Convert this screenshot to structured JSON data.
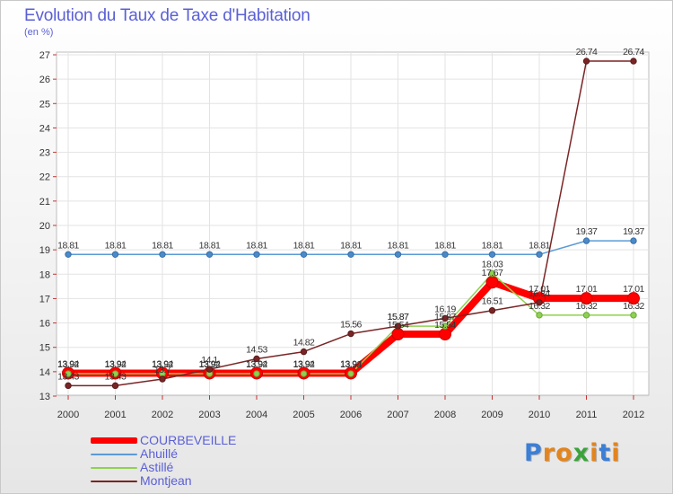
{
  "header": {
    "title": "Evolution du Taux de Taxe d'Habitation",
    "subtitle": "(en %)"
  },
  "logo": {
    "text": "Proxiti",
    "letter_colors": [
      "#3b7fd6",
      "#e2851f",
      "#e2851f",
      "#3aa33a",
      "#e2851f",
      "#3b7fd6",
      "#e2851f"
    ]
  },
  "chart_data": {
    "type": "line",
    "title": "Evolution du Taux de Taxe d'Habitation",
    "ylabel": "(en %)",
    "xlabel": "",
    "x": [
      "2000",
      "2001",
      "2002",
      "2003",
      "2004",
      "2005",
      "2006",
      "2007",
      "2008",
      "2009",
      "2010",
      "2011",
      "2012"
    ],
    "ylim": [
      13,
      27
    ],
    "yticks": [
      "13",
      "14",
      "15",
      "16",
      "17",
      "18",
      "19",
      "20",
      "21",
      "22",
      "23",
      "24",
      "25",
      "26",
      "27"
    ],
    "grid": true,
    "legend_position": "bottom-left",
    "series": [
      {
        "name": "COURBEVEILLE",
        "color": "#ff0000",
        "values": [
          13.94,
          13.94,
          13.94,
          13.94,
          13.94,
          13.94,
          13.94,
          15.54,
          15.54,
          17.67,
          17.01,
          17.01,
          17.01
        ],
        "labels": [
          "13.94",
          "13.94",
          "13.94",
          "13.94",
          "13.94",
          "13.94",
          "13.94",
          "15.54",
          "15.54",
          "17.67",
          "17.01",
          "17.01",
          "17.01"
        ]
      },
      {
        "name": "Ahuillé",
        "color": "#5b9bd5",
        "values": [
          18.81,
          18.81,
          18.81,
          18.81,
          18.81,
          18.81,
          18.81,
          18.81,
          18.81,
          18.81,
          18.81,
          19.37,
          19.37
        ],
        "labels": [
          "18.81",
          "18.81",
          "18.81",
          "18.81",
          "18.81",
          "18.81",
          "18.81",
          "18.81",
          "18.81",
          "18.81",
          "18.81",
          "19.37",
          "19.37"
        ]
      },
      {
        "name": "Astillé",
        "color": "#8fd14f",
        "values": [
          13.92,
          13.92,
          13.92,
          13.92,
          13.92,
          13.92,
          13.92,
          15.87,
          15.87,
          18.03,
          16.32,
          16.32,
          16.32
        ],
        "labels": [
          "13.92",
          "13.92",
          "13.92",
          "13.92",
          "13.92",
          "13.92",
          "13.92",
          "15.87",
          "15.87",
          "18.03",
          "16.32",
          "16.32",
          "16.32"
        ]
      },
      {
        "name": "Montjean",
        "color": "#7a2525",
        "values": [
          13.43,
          13.43,
          13.7,
          14.1,
          14.53,
          14.82,
          15.56,
          15.87,
          16.19,
          16.51,
          16.84,
          26.74,
          26.74
        ],
        "labels": [
          "13.43",
          "13.43",
          "13.7",
          "14.1",
          "14.53",
          "14.82",
          "15.56",
          "15.87",
          "16.19",
          "16.51",
          "16.84",
          "26.74",
          "26.74"
        ]
      }
    ]
  }
}
